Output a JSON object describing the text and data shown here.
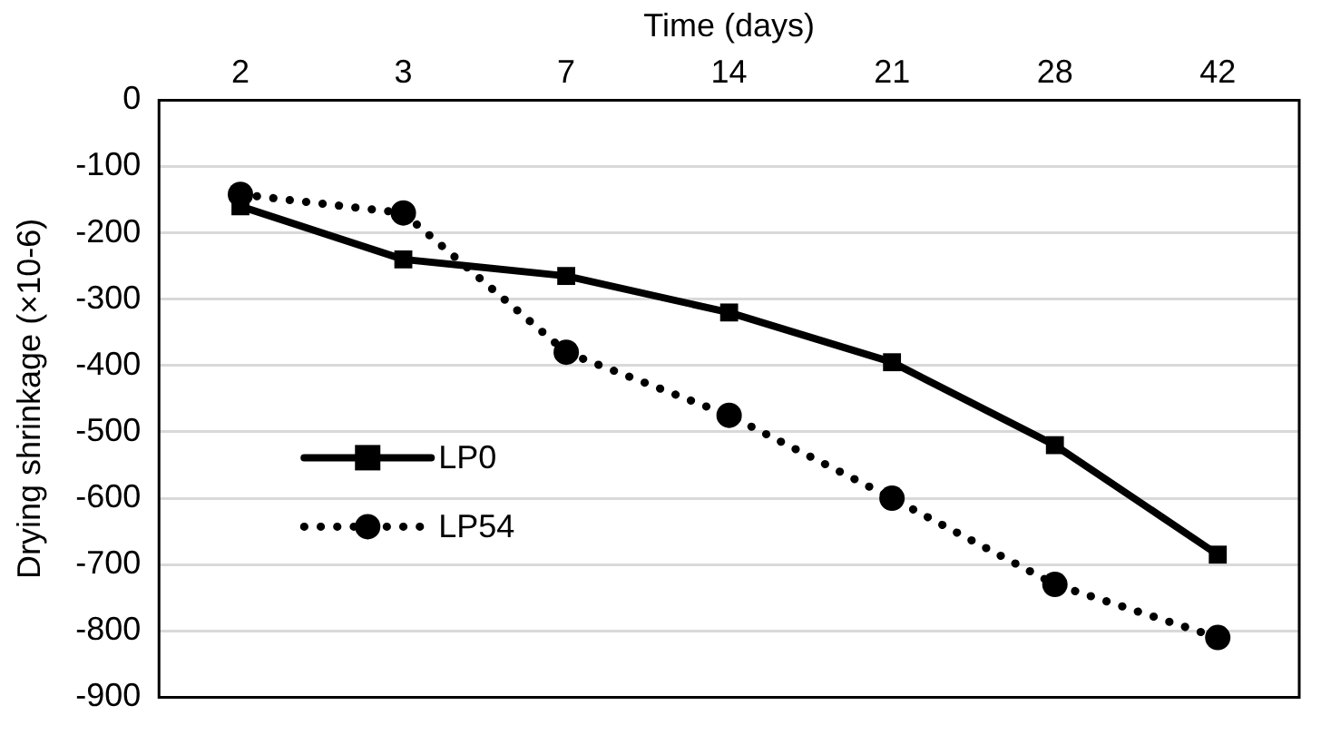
{
  "chart_data": {
    "type": "line",
    "xlabel": "Time (days)",
    "ylabel": "Drying shrinkage (×10-6)",
    "categories": [
      "2",
      "3",
      "7",
      "14",
      "21",
      "28",
      "42"
    ],
    "series": [
      {
        "name": "LP0",
        "color": "#000000",
        "marker": "square",
        "line_style": "solid",
        "values": [
          -160,
          -240,
          -265,
          -320,
          -395,
          -520,
          -685
        ]
      },
      {
        "name": "LP54",
        "color": "#000000",
        "marker": "circle",
        "line_style": "dotted",
        "values": [
          -142,
          -170,
          -380,
          -475,
          -600,
          -730,
          -810
        ]
      }
    ],
    "ylim": [
      -900,
      0
    ],
    "yticks": [
      0,
      -100,
      -200,
      -300,
      -400,
      -500,
      -600,
      -700,
      -800,
      -900
    ],
    "grid": "y",
    "legend": "bottom left"
  }
}
